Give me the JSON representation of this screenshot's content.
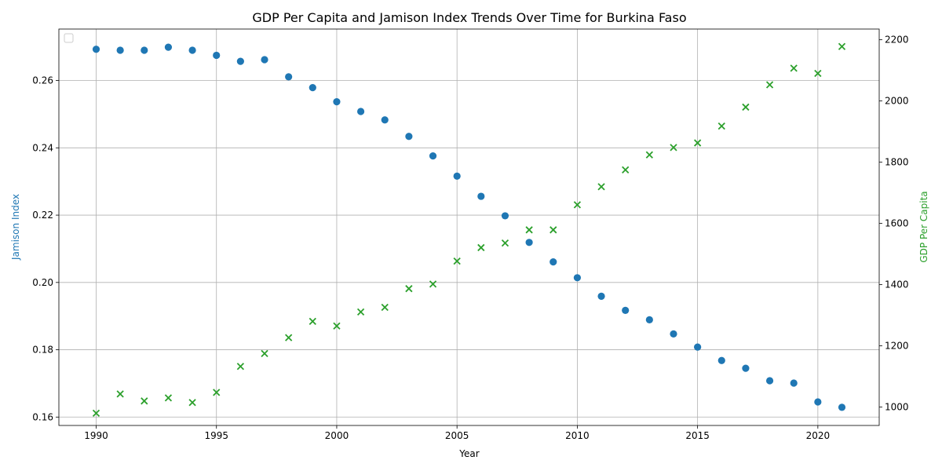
{
  "chart_data": {
    "type": "scatter",
    "title": "GDP Per Capita and Jamison Index Trends Over Time for Burkina Faso",
    "xlabel": "Year",
    "ylabel_left": "Jamison Index",
    "ylabel_right": "GDP Per Capita",
    "xlim": [
      1988.45,
      1992.55
    ],
    "ylim_left": [
      0.1575,
      0.2753
    ],
    "ylim_right": [
      940,
      2235
    ],
    "x_ticks": [
      1990,
      1995,
      2000,
      2005,
      2010,
      2015,
      2020
    ],
    "y_left_ticks": [
      0.16,
      0.18,
      0.2,
      0.22,
      0.24,
      0.26
    ],
    "y_left_tick_labels": [
      "0.16",
      "0.18",
      "0.20",
      "0.22",
      "0.24",
      "0.26"
    ],
    "y_right_ticks": [
      1000,
      1200,
      1400,
      1600,
      1800,
      2000,
      2200
    ],
    "y_right_tick_labels": [
      "1000",
      "1200",
      "1400",
      "1600",
      "1800",
      "2000",
      "2200"
    ],
    "grid": true,
    "colors": {
      "jamison": "#1f77b4",
      "gdp": "#2ca02c"
    },
    "x": [
      1990,
      1991,
      1992,
      1993,
      1994,
      1995,
      1996,
      1997,
      1998,
      1999,
      2000,
      2001,
      2002,
      2003,
      2004,
      2005,
      2006,
      2007,
      2008,
      2009,
      2010,
      2011,
      2012,
      2013,
      2014,
      2015,
      2016,
      2017,
      2018,
      2019,
      2020,
      2021
    ],
    "series": [
      {
        "axis": "left",
        "marker": "circle",
        "values": [
          0.2693,
          0.269,
          0.269,
          0.2699,
          0.269,
          0.2675,
          0.2657,
          0.2662,
          0.2611,
          0.2579,
          0.2537,
          0.2508,
          0.2483,
          0.2434,
          0.2376,
          0.2316,
          0.2256,
          0.2198,
          0.2119,
          0.2061,
          0.2014,
          0.1959,
          0.1917,
          0.1889,
          0.1847,
          0.1808,
          0.1768,
          0.1745,
          0.1708,
          0.1701,
          0.1645,
          0.1629
        ]
      },
      {
        "axis": "right",
        "marker": "x",
        "values": [
          980,
          1043,
          1020,
          1030,
          1015,
          1048,
          1133,
          1175,
          1227,
          1280,
          1265,
          1311,
          1326,
          1387,
          1402,
          1477,
          1521,
          1536,
          1579,
          1579,
          1661,
          1720,
          1775,
          1824,
          1848,
          1863,
          1918,
          1980,
          2053,
          2107,
          2090,
          2178
        ]
      }
    ]
  }
}
